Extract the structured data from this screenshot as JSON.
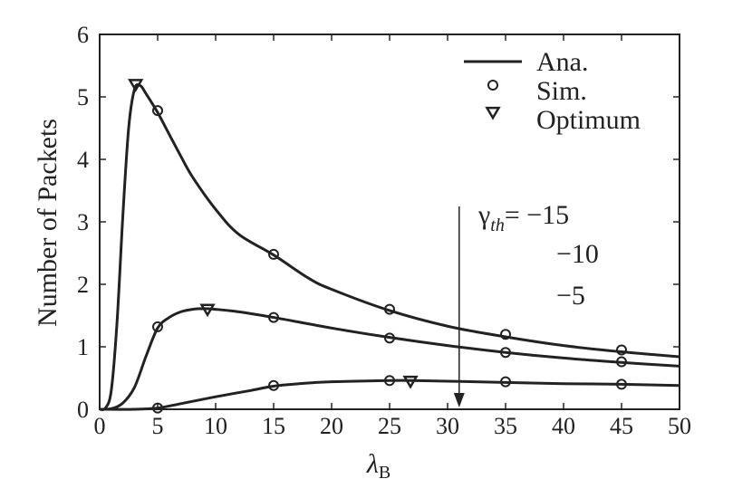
{
  "chart_data": {
    "type": "line",
    "xlabel_main": "λ",
    "xlabel_sub": "B",
    "ylabel": "Number of Packets",
    "xlim": [
      0,
      50
    ],
    "ylim": [
      0,
      6
    ],
    "xticks": [
      0,
      5,
      10,
      15,
      20,
      25,
      30,
      35,
      40,
      45,
      50
    ],
    "yticks": [
      0,
      1,
      2,
      3,
      4,
      5,
      6
    ],
    "grid": false,
    "legend": {
      "position": "top-right",
      "entries": [
        {
          "label": "Ana.",
          "marker": "line"
        },
        {
          "label": "Sim.",
          "marker": "circle"
        },
        {
          "label": "Optimum",
          "marker": "triangle-down"
        }
      ]
    },
    "annotation": {
      "gamma_symbol": "γ",
      "gamma_sub": "th",
      "equals": "=",
      "values": [
        "−15",
        "−10",
        "−5"
      ],
      "arrow_x": 31
    },
    "series": [
      {
        "threshold": "−15",
        "curve": [
          [
            0,
            0
          ],
          [
            0.5,
            0.02
          ],
          [
            1,
            0.3
          ],
          [
            1.5,
            1.4
          ],
          [
            2,
            3.1
          ],
          [
            2.5,
            4.5
          ],
          [
            3,
            5.12
          ],
          [
            3.5,
            5.18
          ],
          [
            4,
            5.05
          ],
          [
            5,
            4.75
          ],
          [
            6,
            4.4
          ],
          [
            7,
            4.05
          ],
          [
            8,
            3.72
          ],
          [
            10,
            3.2
          ],
          [
            12,
            2.8
          ],
          [
            15,
            2.47
          ],
          [
            18,
            2.1
          ],
          [
            20,
            1.92
          ],
          [
            25,
            1.58
          ],
          [
            30,
            1.33
          ],
          [
            35,
            1.16
          ],
          [
            40,
            1.02
          ],
          [
            45,
            0.92
          ],
          [
            50,
            0.84
          ]
        ],
        "sim": [
          [
            5,
            4.78
          ],
          [
            15,
            2.48
          ],
          [
            25,
            1.6
          ],
          [
            35,
            1.2
          ],
          [
            45,
            0.95
          ]
        ],
        "optimum": [
          3.1,
          5.2
        ]
      },
      {
        "threshold": "−10",
        "curve": [
          [
            0,
            0
          ],
          [
            1,
            0.01
          ],
          [
            2,
            0.1
          ],
          [
            3,
            0.35
          ],
          [
            4,
            0.85
          ],
          [
            5,
            1.3
          ],
          [
            6,
            1.47
          ],
          [
            7,
            1.56
          ],
          [
            8,
            1.6
          ],
          [
            9,
            1.61
          ],
          [
            10,
            1.6
          ],
          [
            12,
            1.56
          ],
          [
            15,
            1.47
          ],
          [
            20,
            1.3
          ],
          [
            25,
            1.15
          ],
          [
            30,
            1.02
          ],
          [
            35,
            0.91
          ],
          [
            40,
            0.82
          ],
          [
            45,
            0.75
          ],
          [
            50,
            0.69
          ]
        ],
        "sim": [
          [
            5,
            1.32
          ],
          [
            15,
            1.47
          ],
          [
            25,
            1.14
          ],
          [
            35,
            0.91
          ],
          [
            45,
            0.76
          ]
        ],
        "optimum": [
          9.3,
          1.6
        ]
      },
      {
        "threshold": "−5",
        "curve": [
          [
            0,
            0
          ],
          [
            3,
            0
          ],
          [
            5,
            0.02
          ],
          [
            7,
            0.09
          ],
          [
            10,
            0.2
          ],
          [
            13,
            0.3
          ],
          [
            15,
            0.37
          ],
          [
            18,
            0.42
          ],
          [
            20,
            0.44
          ],
          [
            25,
            0.46
          ],
          [
            27,
            0.46
          ],
          [
            30,
            0.45
          ],
          [
            35,
            0.43
          ],
          [
            40,
            0.41
          ],
          [
            45,
            0.4
          ],
          [
            50,
            0.38
          ]
        ],
        "sim": [
          [
            5,
            0.02
          ],
          [
            15,
            0.38
          ],
          [
            25,
            0.46
          ],
          [
            35,
            0.44
          ],
          [
            45,
            0.4
          ]
        ],
        "optimum": [
          26.8,
          0.45
        ]
      }
    ]
  }
}
